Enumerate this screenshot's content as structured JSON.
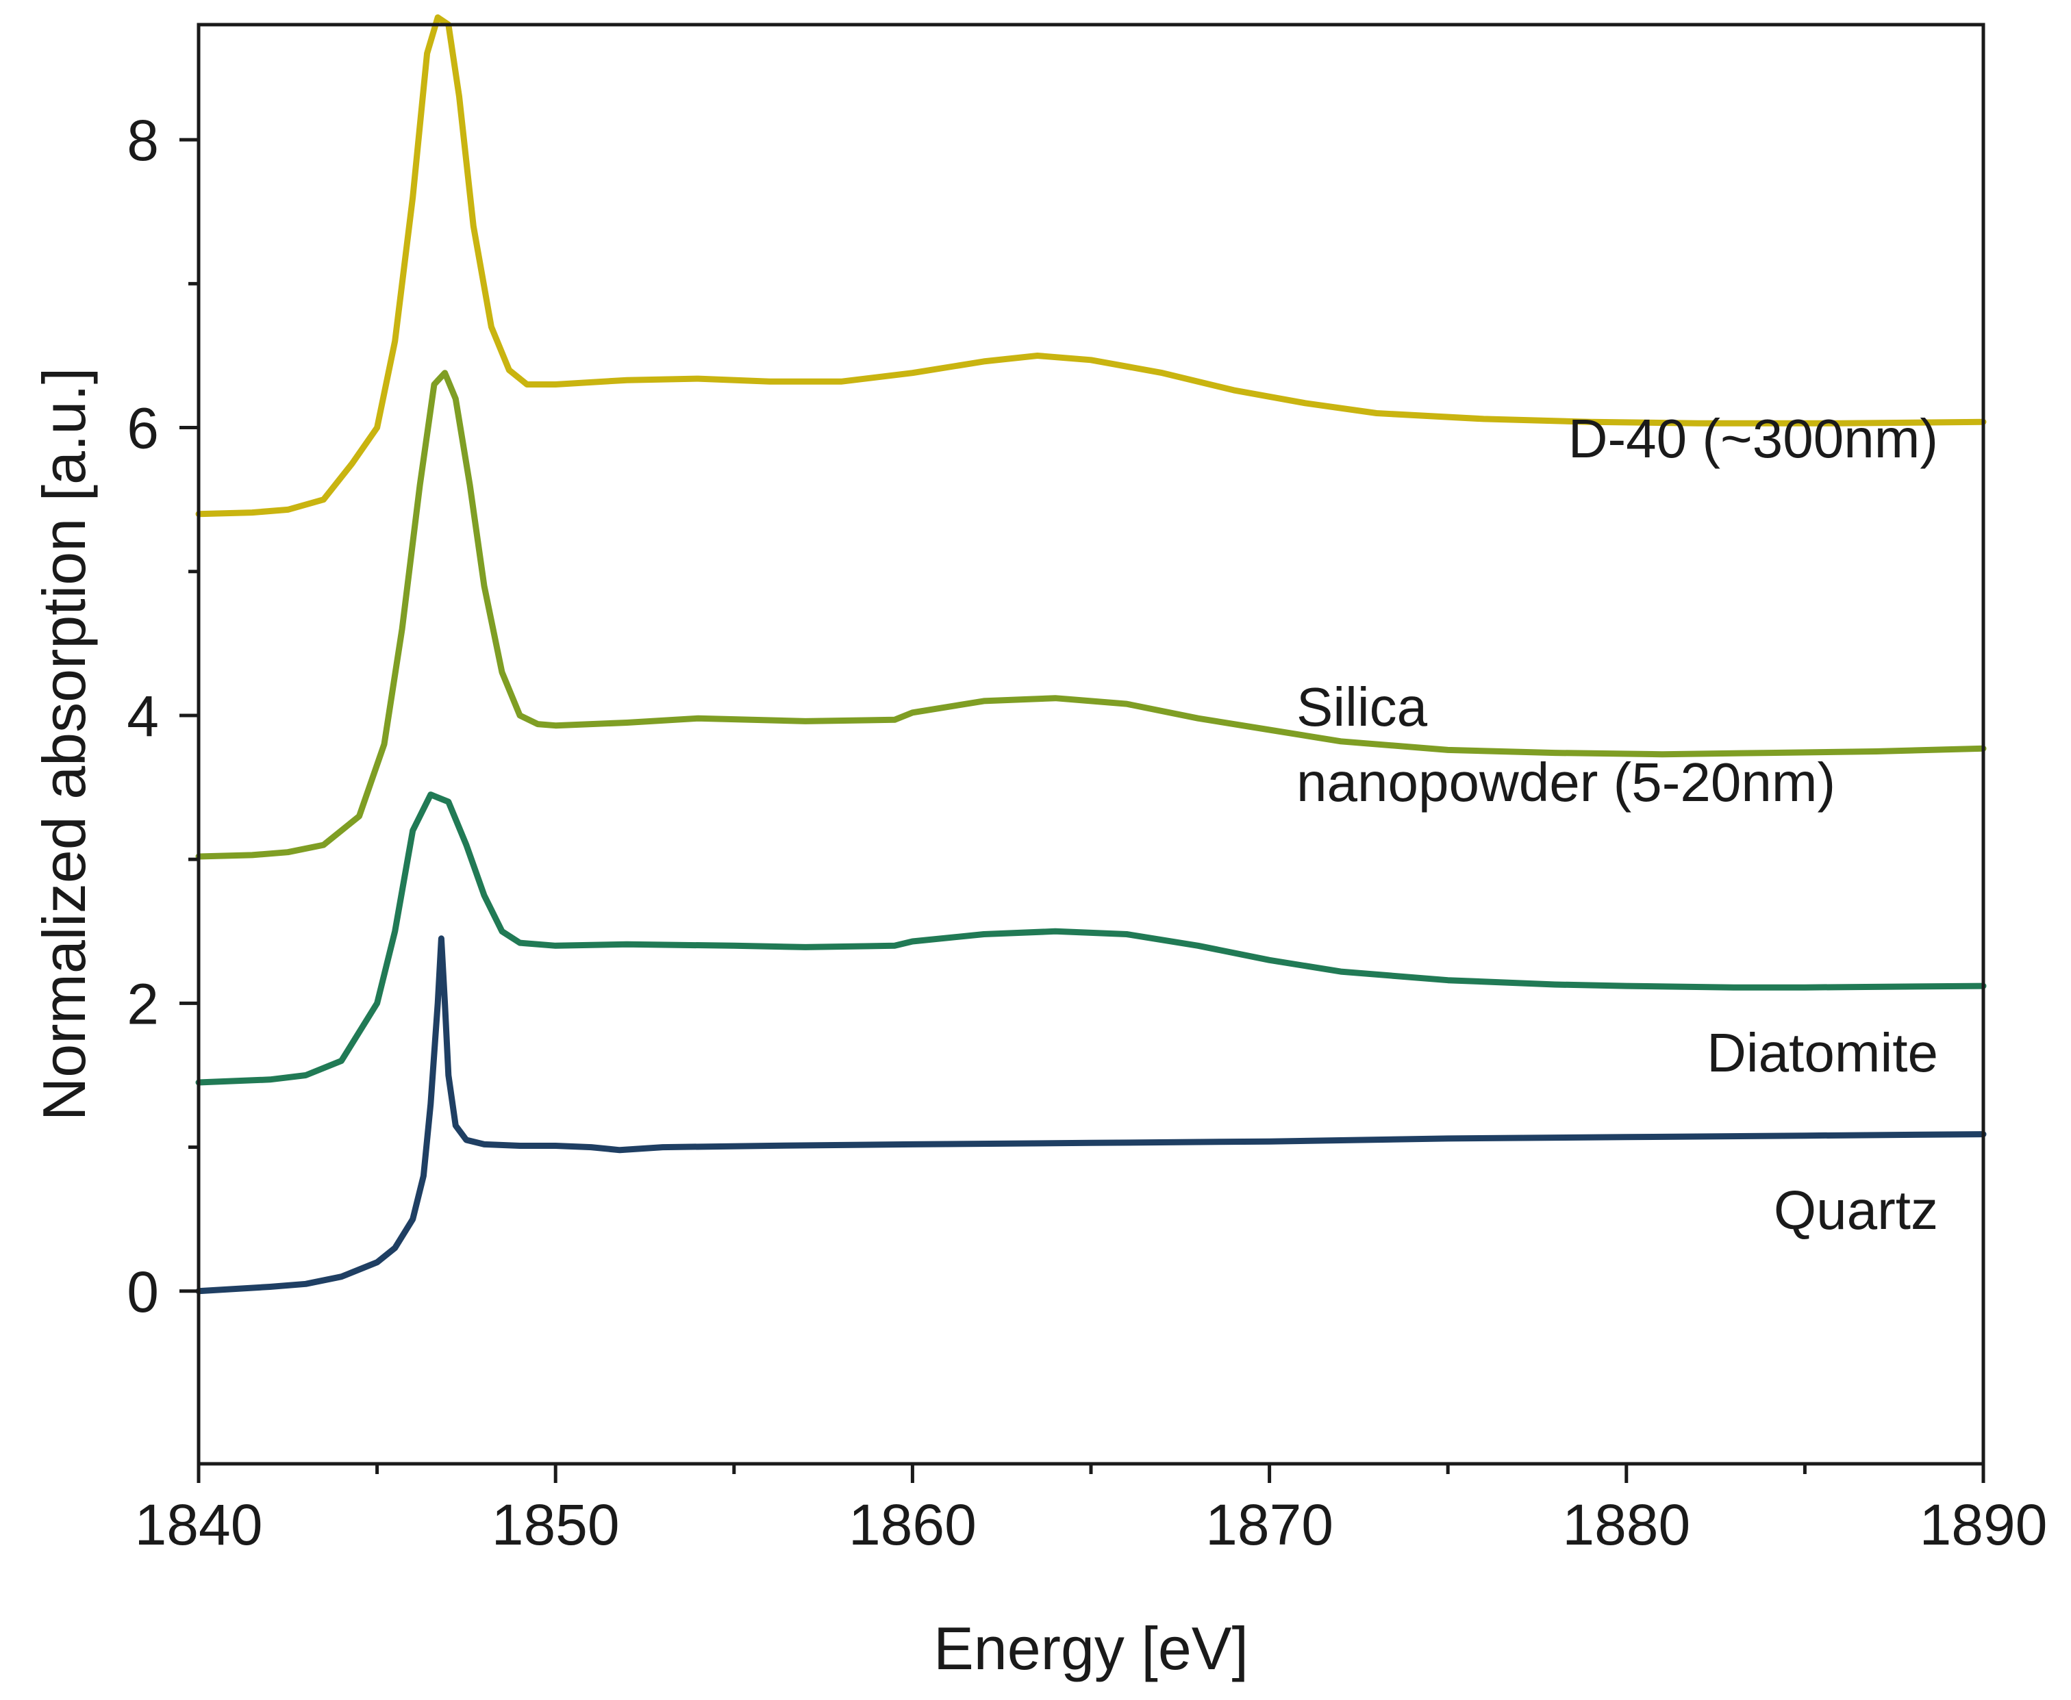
{
  "chart_data": {
    "type": "line",
    "title": "",
    "xlabel": "Energy [eV]",
    "ylabel": "Normalized absorption [a.u.]",
    "xlim": [
      1840,
      1890
    ],
    "ylim": [
      -1.2,
      8.8
    ],
    "xticks": [
      1840,
      1850,
      1860,
      1870,
      1880,
      1890
    ],
    "xticks_minor": [
      1845,
      1855,
      1865,
      1875,
      1885
    ],
    "yticks": [
      0,
      2,
      4,
      6,
      8
    ],
    "yticks_minor": [
      1,
      3,
      5,
      7
    ],
    "grid": false,
    "legend": "none (direct labels next to each curve)",
    "series": [
      {
        "name": "Quartz",
        "label_lines": [
          "Quartz"
        ],
        "color": "#1f3f63",
        "x": [
          1840,
          1842,
          1843,
          1844,
          1845,
          1845.5,
          1846,
          1846.3,
          1846.5,
          1846.7,
          1846.8,
          1846.9,
          1847.0,
          1847.2,
          1847.5,
          1848,
          1849,
          1850,
          1851,
          1851.8,
          1853,
          1856,
          1860,
          1865,
          1870,
          1875,
          1880,
          1885,
          1890
        ],
        "y": [
          0.0,
          0.03,
          0.05,
          0.1,
          0.2,
          0.3,
          0.5,
          0.8,
          1.3,
          2.0,
          2.45,
          2.0,
          1.5,
          1.15,
          1.05,
          1.02,
          1.01,
          1.01,
          1.0,
          0.98,
          1.0,
          1.01,
          1.02,
          1.03,
          1.04,
          1.06,
          1.07,
          1.08,
          1.09
        ]
      },
      {
        "name": "Diatomite",
        "label_lines": [
          "Diatomite"
        ],
        "color": "#217a55",
        "x": [
          1840,
          1842,
          1843,
          1844,
          1845,
          1845.5,
          1846,
          1846.5,
          1847,
          1847.5,
          1848,
          1848.5,
          1849,
          1850,
          1852,
          1855,
          1857,
          1859.5,
          1860,
          1862,
          1864,
          1866,
          1868,
          1870,
          1872,
          1875,
          1878,
          1880,
          1883,
          1885,
          1890
        ],
        "y": [
          1.45,
          1.47,
          1.5,
          1.6,
          2.0,
          2.5,
          3.2,
          3.45,
          3.4,
          3.1,
          2.75,
          2.5,
          2.42,
          2.4,
          2.41,
          2.4,
          2.39,
          2.4,
          2.43,
          2.48,
          2.5,
          2.48,
          2.4,
          2.3,
          2.22,
          2.16,
          2.13,
          2.12,
          2.11,
          2.11,
          2.12
        ]
      },
      {
        "name": "Silica nanopowder (5-20nm)",
        "label_lines": [
          "Silica",
          "nanopowder (5-20nm)"
        ],
        "color": "#7f9e24",
        "x": [
          1840,
          1841.5,
          1842.5,
          1843.5,
          1844.5,
          1845.2,
          1845.7,
          1846.2,
          1846.6,
          1846.9,
          1847.2,
          1847.6,
          1848.0,
          1848.5,
          1849,
          1849.5,
          1850,
          1852,
          1854,
          1857,
          1859.5,
          1860,
          1862,
          1864,
          1866,
          1868,
          1870,
          1872,
          1875,
          1878,
          1881,
          1884,
          1887,
          1890
        ],
        "y": [
          3.02,
          3.03,
          3.05,
          3.1,
          3.3,
          3.8,
          4.6,
          5.6,
          6.3,
          6.38,
          6.2,
          5.6,
          4.9,
          4.3,
          4.0,
          3.94,
          3.93,
          3.95,
          3.98,
          3.96,
          3.97,
          4.02,
          4.1,
          4.12,
          4.08,
          3.98,
          3.9,
          3.82,
          3.76,
          3.74,
          3.73,
          3.74,
          3.75,
          3.77
        ]
      },
      {
        "name": "D-40 (~300nm)",
        "label_lines": [
          "D-40 (~300nm)"
        ],
        "color": "#c9b410",
        "x": [
          1840,
          1841.5,
          1842.5,
          1843.5,
          1844.3,
          1845,
          1845.5,
          1846.0,
          1846.4,
          1846.7,
          1847.0,
          1847.3,
          1847.7,
          1848.2,
          1848.7,
          1849.2,
          1850,
          1852,
          1854,
          1856,
          1858,
          1860,
          1862,
          1863.5,
          1865,
          1867,
          1869,
          1871,
          1873,
          1876,
          1879,
          1882,
          1886,
          1890
        ],
        "y": [
          5.4,
          5.41,
          5.43,
          5.5,
          5.75,
          6.0,
          6.6,
          7.6,
          8.6,
          8.85,
          8.8,
          8.3,
          7.4,
          6.7,
          6.4,
          6.3,
          6.3,
          6.33,
          6.34,
          6.32,
          6.32,
          6.38,
          6.46,
          6.5,
          6.47,
          6.38,
          6.26,
          6.17,
          6.1,
          6.06,
          6.04,
          6.03,
          6.03,
          6.04
        ]
      }
    ]
  }
}
